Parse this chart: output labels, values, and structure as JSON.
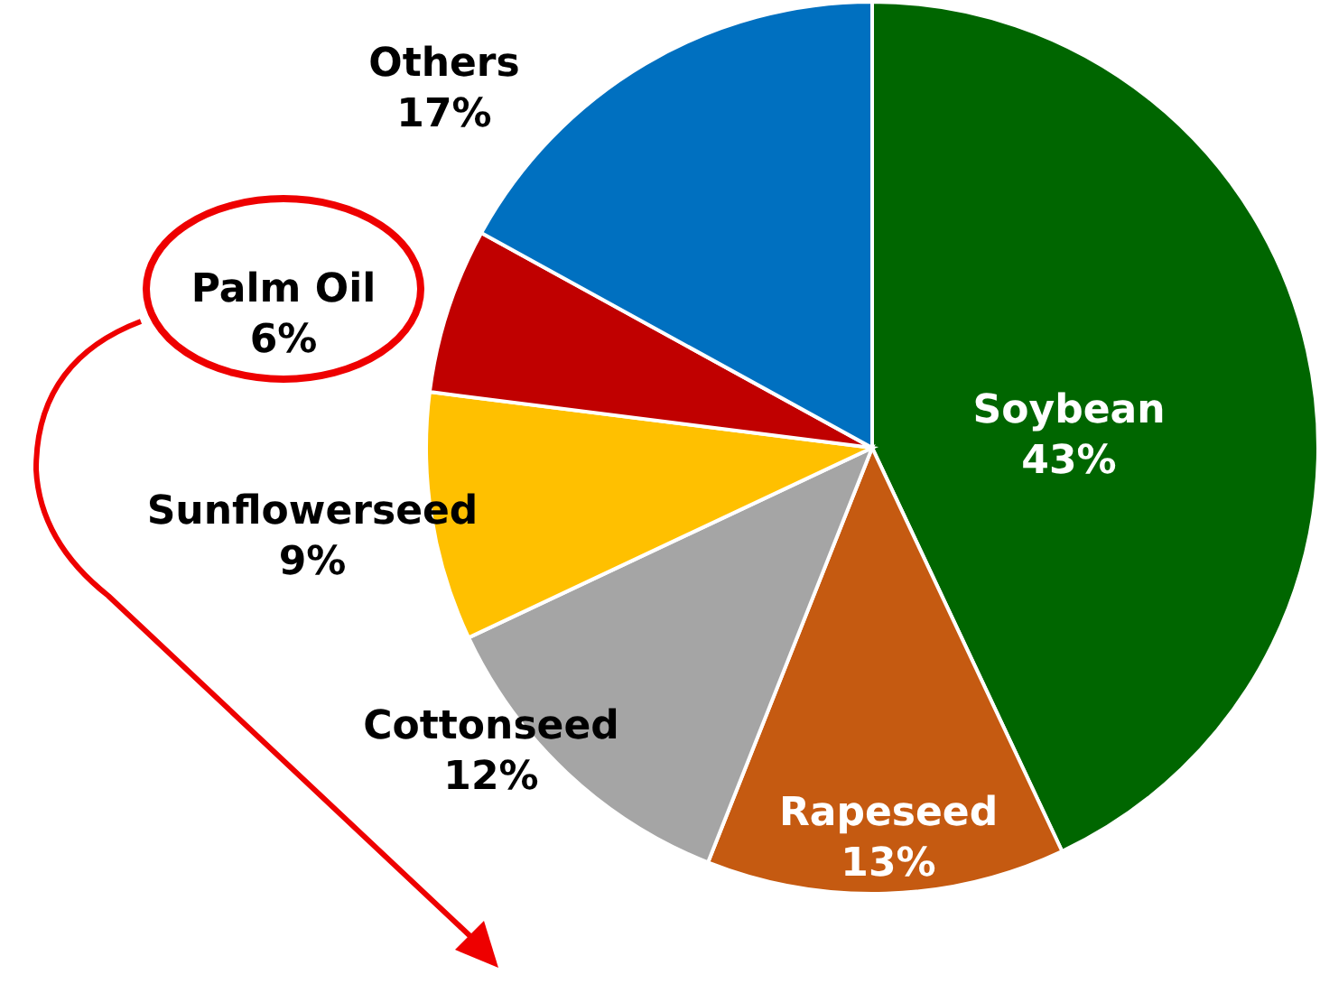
{
  "chart_data": {
    "type": "pie",
    "categories": [
      "Soybean",
      "Rapeseed",
      "Cottonseed",
      "Sunflowerseed",
      "Palm Oil",
      "Others"
    ],
    "values": [
      43,
      13,
      12,
      9,
      6,
      17
    ],
    "value_labels": [
      "43%",
      "13%",
      "12%",
      "9%",
      "6%",
      "17%"
    ],
    "colors": [
      "#006600",
      "#c55a11",
      "#a5a5a5",
      "#ffc000",
      "#c00000",
      "#0070c0"
    ]
  }
}
